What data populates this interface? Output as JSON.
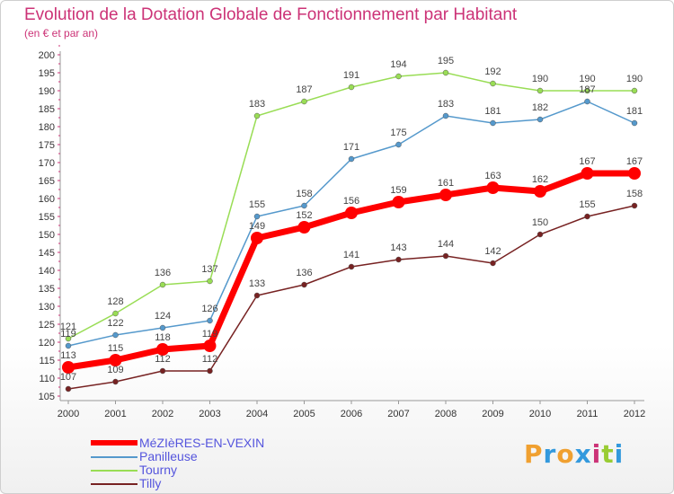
{
  "header": {
    "title": "Evolution de la Dotation Globale de Fonctionnement par Habitant",
    "subtitle": "(en € et par an)"
  },
  "brand": {
    "text": "Proxiti",
    "letters": [
      "P",
      "r",
      "o",
      "x",
      "i",
      "t",
      "i"
    ],
    "colors": [
      "#f0a030",
      "#3399dd",
      "#f0a030",
      "#3399dd",
      "#cc3377",
      "#99cc33",
      "#3399dd"
    ]
  },
  "chart_data": {
    "type": "line",
    "title": "Evolution de la Dotation Globale de Fonctionnement par Habitant",
    "subtitle": "(en € et par an)",
    "x": [
      "2000",
      "2001",
      "2002",
      "2003",
      "2004",
      "2005",
      "2006",
      "2007",
      "2008",
      "2009",
      "2010",
      "2011",
      "2012"
    ],
    "y_ticks": [
      105,
      110,
      115,
      120,
      125,
      130,
      135,
      140,
      145,
      150,
      155,
      160,
      165,
      170,
      175,
      180,
      185,
      190,
      195,
      200
    ],
    "ylim": [
      104,
      201
    ],
    "grid": false,
    "legend_position": "bottom-left",
    "series": [
      {
        "name": "MéZIèRES-EN-VEXIN",
        "color": "#ff0000",
        "values": [
          113,
          115,
          118,
          119,
          149,
          152,
          156,
          159,
          161,
          163,
          162,
          167,
          167
        ]
      },
      {
        "name": "Panilleuse",
        "color": "#5599cc",
        "values": [
          119,
          122,
          124,
          126,
          155,
          158,
          171,
          175,
          183,
          181,
          182,
          187,
          181
        ]
      },
      {
        "name": "Tourny",
        "color": "#99dd55",
        "values": [
          121,
          128,
          136,
          137,
          183,
          187,
          191,
          194,
          195,
          192,
          190,
          190,
          190
        ]
      },
      {
        "name": "Tilly",
        "color": "#772222",
        "values": [
          107,
          109,
          112,
          112,
          133,
          136,
          141,
          143,
          144,
          142,
          150,
          155,
          158
        ]
      }
    ]
  }
}
